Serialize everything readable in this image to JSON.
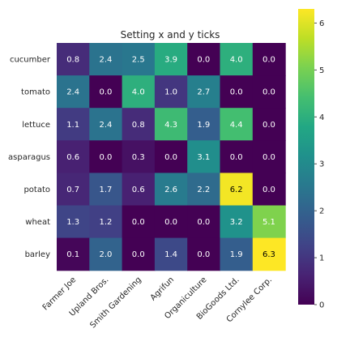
{
  "chart_data": {
    "type": "heatmap",
    "title": "Setting x and y ticks",
    "x_categories": [
      "Farmer Joe",
      "Upland Bros.",
      "Smith Gardening",
      "Agrifun",
      "Organiculture",
      "BioGoods Ltd.",
      "Cornylee Corp."
    ],
    "y_categories": [
      "cucumber",
      "tomato",
      "lettuce",
      "asparagus",
      "potato",
      "wheat",
      "barley"
    ],
    "values": [
      [
        0.8,
        2.4,
        2.5,
        3.9,
        0.0,
        4.0,
        0.0
      ],
      [
        2.4,
        0.0,
        4.0,
        1.0,
        2.7,
        0.0,
        0.0
      ],
      [
        1.1,
        2.4,
        0.8,
        4.3,
        1.9,
        4.4,
        0.0
      ],
      [
        0.6,
        0.0,
        0.3,
        0.0,
        3.1,
        0.0,
        0.0
      ],
      [
        0.7,
        1.7,
        0.6,
        2.6,
        2.2,
        6.2,
        0.0
      ],
      [
        1.3,
        1.2,
        0.0,
        0.0,
        0.0,
        3.2,
        5.1
      ],
      [
        0.1,
        2.0,
        0.0,
        1.4,
        0.0,
        1.9,
        6.3
      ]
    ],
    "value_labels": [
      [
        "0.8",
        "2.4",
        "2.5",
        "3.9",
        "0.0",
        "4.0",
        "0.0"
      ],
      [
        "2.4",
        "0.0",
        "4.0",
        "1.0",
        "2.7",
        "0.0",
        "0.0"
      ],
      [
        "1.1",
        "2.4",
        "0.8",
        "4.3",
        "1.9",
        "4.4",
        "0.0"
      ],
      [
        "0.6",
        "0.0",
        "0.3",
        "0.0",
        "3.1",
        "0.0",
        "0.0"
      ],
      [
        "0.7",
        "1.7",
        "0.6",
        "2.6",
        "2.2",
        "6.2",
        "0.0"
      ],
      [
        "1.3",
        "1.2",
        "0.0",
        "0.0",
        "0.0",
        "3.2",
        "5.1"
      ],
      [
        "0.1",
        "2.0",
        "0.0",
        "1.4",
        "0.0",
        "1.9",
        "6.3"
      ]
    ],
    "colormap": "viridis",
    "vmin": 0.0,
    "vmax": 6.3,
    "colorbar_ticks": [
      0,
      1,
      2,
      3,
      4,
      5,
      6
    ],
    "colorbar_tick_labels": [
      "0",
      "1",
      "2",
      "3",
      "4",
      "5",
      "6"
    ],
    "label_colors": {
      "light": "#ffffff",
      "dark": "#000000"
    },
    "grid": false
  }
}
